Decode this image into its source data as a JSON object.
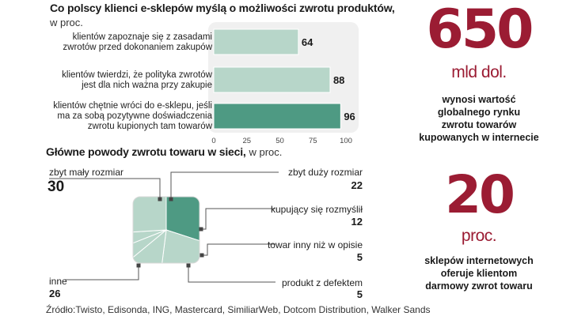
{
  "header": {
    "title": "Co polscy klienci e-sklepów myślą o możliwości zwrotu produktów,",
    "subtitle": "w proc."
  },
  "colors": {
    "accent": "#9b1c33",
    "bar_light": "#b7d6c9",
    "bar_dark": "#4e9a83",
    "panel": "#f0f0f0"
  },
  "chart_data": [
    {
      "type": "bar",
      "orientation": "horizontal",
      "categories": [
        "klientów zapoznaje się z zasadami\nzwrotów przed dokonaniem zakupów",
        "klientów twierdzi, że polityka zwrotów\njest dla nich ważna przy zakupie",
        "klientów chętnie wróci do e-sklepu, jeśli\nma za sobą pozytywne doświadczenia\nzwrotu kupionych tam towarów"
      ],
      "values": [
        64,
        88,
        96
      ],
      "xlim": [
        0,
        100
      ],
      "xticks": [
        "0",
        "25",
        "50",
        "75",
        "100"
      ]
    },
    {
      "type": "pie",
      "title": "Główne powody zwrotu towaru w sieci,",
      "subtitle": "w proc.",
      "slices": [
        {
          "label": "zbyt mały rozmiar",
          "value": 30
        },
        {
          "label": "zbyt duży rozmiar",
          "value": 22
        },
        {
          "label": "kupujący się rozmyślił",
          "value": 12
        },
        {
          "label": "towar inny niż w opisie",
          "value": 5
        },
        {
          "label": "produkt z defektem",
          "value": 5
        },
        {
          "label": "inne",
          "value": 26
        }
      ]
    }
  ],
  "stats": [
    {
      "value": "650",
      "unit": "mld dol.",
      "description": "wynosi wartość\nglobalnego rynku\nzwrotu towarów\nkupowanych w internecie"
    },
    {
      "value": "20",
      "unit": "proc.",
      "description": "sklepów internetowych\noferuje klientom\ndarmowy zwrot towaru"
    }
  ],
  "source": "Źródło:Twisto, Edisonda, ING, Mastercard, SimiliarWeb, Dotcom Distribution, Walker Sands"
}
